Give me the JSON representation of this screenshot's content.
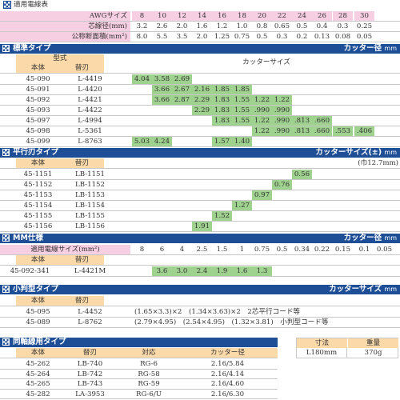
{
  "top": {
    "title": "適用電線表",
    "rows": [
      {
        "label": "AWGサイズ",
        "values": [
          "8",
          "10",
          "12",
          "14",
          "16",
          "18",
          "20",
          "22",
          "24",
          "26",
          "28",
          "30"
        ]
      },
      {
        "label": "芯線径(mm)",
        "values": [
          "3.2",
          "2.6",
          "2.0",
          "1.6",
          "1.2",
          "1.0",
          "0.8",
          "0.65",
          "0.5",
          "0.4",
          "0.3",
          "0.25"
        ]
      },
      {
        "label": "公称断面積(mm²)",
        "values": [
          "8.0",
          "5.5",
          "3.5",
          "2.0",
          "1.25",
          "0.75",
          "0.5",
          "0.3",
          "0.2",
          "0.13",
          "0.08",
          "0.05"
        ]
      }
    ]
  },
  "standard": {
    "title": "標準タイプ",
    "right": "カッター径",
    "unit": "mm",
    "h_model": "型式",
    "h_body": "本体",
    "h_blade": "替刃",
    "h_cutter": "カッターサイズ",
    "rows": [
      {
        "body": "45-090",
        "blade": "L-4419",
        "cells": [
          "4.04",
          "3.58",
          "2.69",
          "",
          "",
          "",
          "",
          "",
          "",
          "",
          "",
          ""
        ]
      },
      {
        "body": "45-091",
        "blade": "L-4420",
        "cells": [
          "",
          "3.66",
          "2.67",
          "2.16",
          "1.85",
          "1.85",
          "",
          "",
          "",
          "",
          "",
          ""
        ]
      },
      {
        "body": "45-092",
        "blade": "L-4421",
        "cells": [
          "",
          "3.66",
          "2.87",
          "2.29",
          "1.83",
          "1.55",
          "1.22",
          "1.22",
          "",
          "",
          "",
          ""
        ]
      },
      {
        "body": "45-093",
        "blade": "L-4422",
        "cells": [
          "",
          "",
          "",
          "2.29",
          "1.83",
          "1.55",
          ".990",
          ".990",
          "",
          "",
          "",
          ""
        ]
      },
      {
        "body": "45-097",
        "blade": "L-4994",
        "cells": [
          "",
          "",
          "",
          "",
          "1.83",
          "1.55",
          "1.22",
          ".990",
          ".813",
          ".660",
          "",
          ""
        ]
      },
      {
        "body": "45-098",
        "blade": "L-5361",
        "cells": [
          "",
          "",
          "",
          "",
          "",
          "",
          "1.22",
          ".990",
          ".813",
          ".660",
          ".553",
          ".406"
        ]
      },
      {
        "body": "45-099",
        "blade": "L-8763",
        "cells": [
          "5.03",
          "4.24",
          "",
          "",
          "1.57",
          "1.40",
          "",
          "",
          "",
          "",
          "",
          ""
        ]
      }
    ]
  },
  "flat": {
    "title": "平行刃タイプ",
    "right": "カッターサイズ(±)",
    "unit": "mm",
    "note": "(巾12.7mm)",
    "h_body": "本体",
    "h_blade": "替刃",
    "rows": [
      {
        "body": "45-1151",
        "blade": "LB-1151",
        "cells": [
          "",
          "",
          "",
          "",
          "",
          "",
          "",
          "",
          "0.56",
          "",
          "",
          ""
        ]
      },
      {
        "body": "45-1152",
        "blade": "LB-1152",
        "cells": [
          "",
          "",
          "",
          "",
          "",
          "",
          "",
          "0.76",
          "",
          "",
          "",
          ""
        ]
      },
      {
        "body": "45-1153",
        "blade": "LB-1153",
        "cells": [
          "",
          "",
          "",
          "",
          "",
          "",
          "0.97",
          "",
          "",
          "",
          "",
          ""
        ]
      },
      {
        "body": "45-1154",
        "blade": "LB-1154",
        "cells": [
          "",
          "",
          "",
          "",
          "",
          "1.27",
          "",
          "",
          "",
          "",
          "",
          ""
        ]
      },
      {
        "body": "45-1155",
        "blade": "LB-1155",
        "cells": [
          "",
          "",
          "",
          "",
          "1.52",
          "",
          "",
          "",
          "",
          "",
          "",
          ""
        ]
      },
      {
        "body": "45-1156",
        "blade": "LB-1156",
        "cells": [
          "",
          "",
          "",
          "1.91",
          "",
          "",
          "",
          "",
          "",
          "",
          "",
          ""
        ]
      }
    ]
  },
  "mm": {
    "title": "MM仕様",
    "right": "カッター径",
    "unit": "mm",
    "h_size": "適用電線サイズ(mm²)",
    "h_body": "本体",
    "h_blade": "替刃",
    "sizes": [
      "8",
      "6",
      "4",
      "2.5",
      "1.5",
      "1",
      "0.75",
      "0.5",
      "0.34",
      "0.22",
      "0.15",
      "0.1",
      "0.05"
    ],
    "row": {
      "body": "45-092-341",
      "blade": "L-4421M",
      "cells": [
        "",
        "3.6",
        "3.0",
        "2.4",
        "1.9",
        "1.6",
        "1.3",
        "",
        "",
        "",
        "",
        "",
        ""
      ]
    }
  },
  "small": {
    "title": "小判型タイプ",
    "right": "カッターサイズ",
    "unit": "mm",
    "h_body": "本体",
    "h_blade": "替刃",
    "rows": [
      {
        "body": "45-095",
        "blade": "L-4452",
        "desc": "(1.65×3.3)×2　(1.34×3.63)×2　2芯平行コード等"
      },
      {
        "body": "45-089",
        "blade": "L-8762",
        "desc": "(2.79×4.95)　(2.54×4.95)　(1.32×3.81)　小判型コード等"
      }
    ]
  },
  "coax": {
    "title": "同軸線用タイプ",
    "h_body": "本体",
    "h_blade": "替刃",
    "h_fit": "対応",
    "h_cutter": "カッター径",
    "rows": [
      {
        "body": "45-262",
        "blade": "LB-740",
        "fit": "RG-6",
        "cutter": "2.16/5.84"
      },
      {
        "body": "45-264",
        "blade": "LB-742",
        "fit": "RG-58",
        "cutter": "2.16/4.14"
      },
      {
        "body": "45-265",
        "blade": "LB-743",
        "fit": "RG-59",
        "cutter": "2.16/4.60"
      },
      {
        "body": "45-282",
        "blade": "LA-3953",
        "fit": "RG-6/U",
        "cutter": "2.16/6.30"
      }
    ]
  },
  "dim": {
    "h_size": "寸法",
    "h_weight": "重量",
    "size": "L180mm",
    "weight": "370g"
  }
}
